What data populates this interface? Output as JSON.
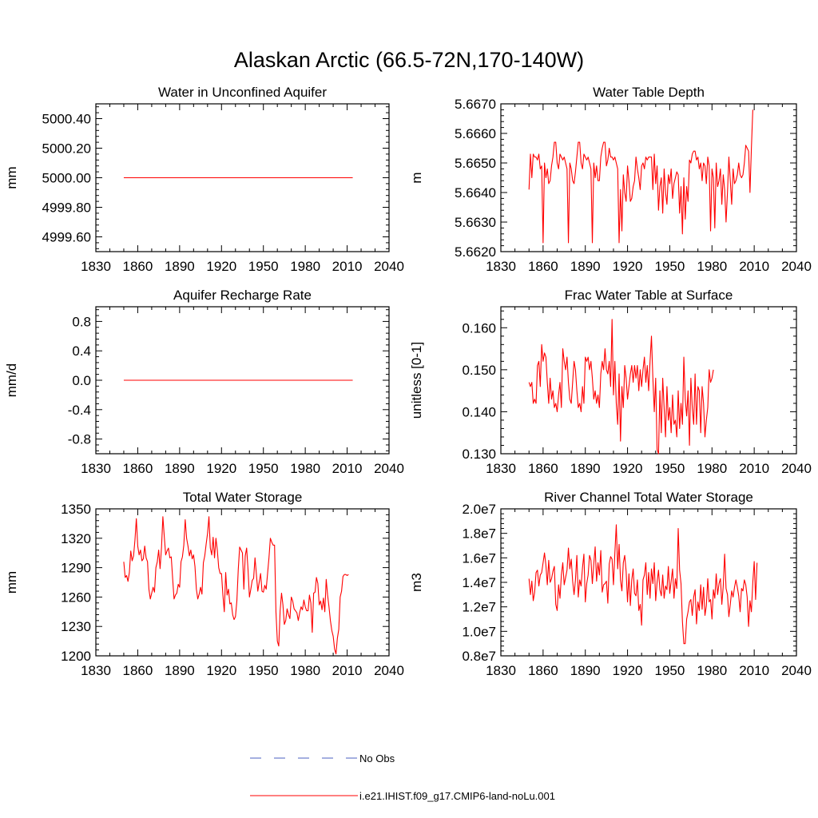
{
  "figure": {
    "title": "Alaskan Arctic (66.5-72N,170-140W)"
  },
  "legend": {
    "entries": [
      {
        "label": "No Obs",
        "color": "#4b5fc0",
        "dashed": true
      },
      {
        "label": "i.e21.IHIST.f09_g17.CMIP6-land-noLu.001",
        "color": "#ff0000",
        "dashed": false
      }
    ]
  },
  "chart_data": [
    {
      "type": "line",
      "title": "Water in Unconfined Aquifer",
      "ylabel": "mm",
      "xlim": [
        1830,
        2040
      ],
      "ylim": [
        4999.5,
        5000.5
      ],
      "xticks": [
        "1830",
        "1860",
        "1890",
        "1920",
        "1950",
        "1980",
        "2010",
        "2040"
      ],
      "yticks": [
        "4999.60",
        "4999.80",
        "5000.00",
        "5000.20",
        "5000.40"
      ],
      "ytick_values": [
        4999.6,
        4999.8,
        5000.0,
        5000.2,
        5000.4
      ],
      "series": [
        {
          "name": "i.e21.IHIST.f09_g17.CMIP6-land-noLu.001",
          "color": "#ff0000",
          "x": [
            1850,
            2014
          ],
          "y": [
            5000.0,
            5000.0
          ]
        }
      ]
    },
    {
      "type": "line",
      "title": "Water Table Depth",
      "ylabel": "m",
      "xlim": [
        1830,
        2040
      ],
      "ylim": [
        5.662,
        5.667
      ],
      "xticks": [
        "1830",
        "1860",
        "1890",
        "1920",
        "1950",
        "1980",
        "2010",
        "2040"
      ],
      "yticks": [
        "5.6620",
        "5.6630",
        "5.6640",
        "5.6650",
        "5.6660",
        "5.6670"
      ],
      "ytick_values": [
        5.662,
        5.663,
        5.664,
        5.665,
        5.666,
        5.667
      ],
      "series": [
        {
          "name": "i.e21.IHIST.f09_g17.CMIP6-land-noLu.001",
          "color": "#ff0000",
          "x_start": 1850,
          "x_step": 1,
          "y": [
            5.6641,
            5.6653,
            5.6645,
            5.6653,
            5.6652,
            5.6652,
            5.6651,
            5.6653,
            5.6648,
            5.6649,
            5.6623,
            5.665,
            5.6645,
            5.6648,
            5.6643,
            5.6644,
            5.6649,
            5.6652,
            5.6657,
            5.6657,
            5.665,
            5.6648,
            5.6653,
            5.6652,
            5.6651,
            5.6652,
            5.665,
            5.6648,
            5.6623,
            5.665,
            5.6648,
            5.6644,
            5.6643,
            5.6647,
            5.6652,
            5.6657,
            5.6657,
            5.665,
            5.6648,
            5.6653,
            5.6652,
            5.6651,
            5.6652,
            5.665,
            5.6648,
            5.6623,
            5.665,
            5.6645,
            5.6649,
            5.6644,
            5.6644,
            5.6652,
            5.6655,
            5.6657,
            5.6657,
            5.6649,
            5.6651,
            5.6655,
            5.6652,
            5.6652,
            5.6651,
            5.6652,
            5.665,
            5.6648,
            5.6623,
            5.6641,
            5.6627,
            5.6646,
            5.664,
            5.6637,
            5.6649,
            5.6644,
            5.6637,
            5.6638,
            5.6642,
            5.6644,
            5.6652,
            5.6648,
            5.6645,
            5.6641,
            5.6649,
            5.665,
            5.6648,
            5.6652,
            5.6651,
            5.6652,
            5.6652,
            5.6652,
            5.6641,
            5.6653,
            5.6643,
            5.6649,
            5.6634,
            5.6642,
            5.6645,
            5.6633,
            5.6648,
            5.664,
            5.6636,
            5.6646,
            5.6643,
            5.6648,
            5.6638,
            5.6643,
            5.6645,
            5.6647,
            5.6646,
            5.6633,
            5.6642,
            5.6626,
            5.6645,
            5.6631,
            5.6642,
            5.6637,
            5.6651,
            5.665,
            5.6653,
            5.6654,
            5.6654,
            5.6651,
            5.6652,
            5.6648,
            5.665,
            5.6644,
            5.665,
            5.6649,
            5.6643,
            5.6652,
            5.6649,
            5.6627,
            5.6648,
            5.6645,
            5.6628,
            5.665,
            5.6642,
            5.6644,
            5.6648,
            5.6636,
            5.6646,
            5.6641,
            5.663,
            5.664,
            5.6652,
            5.6644,
            5.6636,
            5.6648,
            5.6643,
            5.6644,
            5.6646,
            5.665,
            5.6646,
            5.6645,
            5.6646,
            5.665,
            5.6656,
            5.6655,
            5.6654,
            5.664,
            5.6655,
            5.6668
          ]
        }
      ]
    },
    {
      "type": "line",
      "title": "Aquifer Recharge Rate",
      "ylabel": "mm/d",
      "xlim": [
        1830,
        2040
      ],
      "ylim": [
        -1.0,
        1.0
      ],
      "xticks": [
        "1830",
        "1860",
        "1890",
        "1920",
        "1950",
        "1980",
        "2010",
        "2040"
      ],
      "yticks": [
        "-0.8",
        "-0.4",
        "0.0",
        "0.4",
        "0.8"
      ],
      "ytick_values": [
        -0.8,
        -0.4,
        0.0,
        0.4,
        0.8
      ],
      "series": [
        {
          "name": "i.e21.IHIST.f09_g17.CMIP6-land-noLu.001",
          "color": "#ff0000",
          "x": [
            1850,
            2014
          ],
          "y": [
            0.0,
            0.0
          ]
        }
      ]
    },
    {
      "type": "line",
      "title": "Frac Water Table at Surface",
      "ylabel": "unitless [0-1]",
      "xlim": [
        1830,
        2040
      ],
      "ylim": [
        0.13,
        0.165
      ],
      "xticks": [
        "1830",
        "1860",
        "1890",
        "1920",
        "1950",
        "1980",
        "2010",
        "2040"
      ],
      "yticks": [
        "0.130",
        "0.140",
        "0.150",
        "0.160"
      ],
      "ytick_values": [
        0.13,
        0.14,
        0.15,
        0.16
      ],
      "series": [
        {
          "name": "i.e21.IHIST.f09_g17.CMIP6-land-noLu.001",
          "color": "#ff0000",
          "x_start": 1850,
          "x_step": 1,
          "y": [
            0.147,
            0.146,
            0.147,
            0.142,
            0.143,
            0.142,
            0.151,
            0.152,
            0.146,
            0.156,
            0.152,
            0.154,
            0.153,
            0.147,
            0.142,
            0.148,
            0.143,
            0.145,
            0.141,
            0.142,
            0.14,
            0.144,
            0.147,
            0.141,
            0.155,
            0.152,
            0.15,
            0.153,
            0.147,
            0.143,
            0.142,
            0.147,
            0.152,
            0.15,
            0.145,
            0.141,
            0.142,
            0.14,
            0.146,
            0.142,
            0.153,
            0.152,
            0.153,
            0.15,
            0.152,
            0.148,
            0.143,
            0.145,
            0.142,
            0.144,
            0.141,
            0.149,
            0.152,
            0.15,
            0.155,
            0.15,
            0.149,
            0.152,
            0.146,
            0.162,
            0.144,
            0.152,
            0.142,
            0.137,
            0.149,
            0.133,
            0.146,
            0.141,
            0.151,
            0.148,
            0.143,
            0.146,
            0.149,
            0.151,
            0.147,
            0.151,
            0.148,
            0.151,
            0.145,
            0.15,
            0.146,
            0.15,
            0.153,
            0.147,
            0.151,
            0.145,
            0.152,
            0.158,
            0.148,
            0.14,
            0.148,
            0.131,
            0.13,
            0.145,
            0.135,
            0.148,
            0.141,
            0.134,
            0.146,
            0.138,
            0.141,
            0.135,
            0.144,
            0.137,
            0.138,
            0.134,
            0.145,
            0.136,
            0.142,
            0.137,
            0.153,
            0.143,
            0.139,
            0.145,
            0.132,
            0.148,
            0.141,
            0.137,
            0.149,
            0.137,
            0.146,
            0.145,
            0.135,
            0.146,
            0.142,
            0.134,
            0.138,
            0.141,
            0.15,
            0.147,
            0.148,
            0.15
          ]
        }
      ]
    },
    {
      "type": "line",
      "title": "Total Water Storage",
      "ylabel": "mm",
      "xlim": [
        1830,
        2040
      ],
      "ylim": [
        1200,
        1350
      ],
      "xticks": [
        "1830",
        "1860",
        "1890",
        "1920",
        "1950",
        "1980",
        "2010",
        "2040"
      ],
      "yticks": [
        "1200",
        "1230",
        "1260",
        "1290",
        "1320",
        "1350"
      ],
      "ytick_values": [
        1200,
        1230,
        1260,
        1290,
        1320,
        1350
      ],
      "series": [
        {
          "name": "i.e21.IHIST.f09_g17.CMIP6-land-noLu.001",
          "color": "#ff0000",
          "x_start": 1850,
          "x_step": 1,
          "y": [
            1296,
            1280,
            1282,
            1276,
            1285,
            1307,
            1297,
            1302,
            1318,
            1340,
            1312,
            1303,
            1308,
            1297,
            1299,
            1312,
            1300,
            1296,
            1268,
            1258,
            1264,
            1270,
            1265,
            1290,
            1296,
            1308,
            1289,
            1310,
            1342,
            1322,
            1303,
            1307,
            1310,
            1300,
            1301,
            1279,
            1258,
            1262,
            1264,
            1273,
            1270,
            1296,
            1301,
            1313,
            1339,
            1320,
            1312,
            1302,
            1308,
            1299,
            1303,
            1291,
            1268,
            1258,
            1263,
            1270,
            1263,
            1295,
            1302,
            1314,
            1325,
            1342,
            1310,
            1303,
            1321,
            1300,
            1320,
            1308,
            1290,
            1284,
            1284,
            1262,
            1245,
            1285,
            1262,
            1268,
            1253,
            1254,
            1242,
            1237,
            1240,
            1256,
            1288,
            1311,
            1308,
            1305,
            1268,
            1302,
            1310,
            1288,
            1260,
            1268,
            1277,
            1279,
            1300,
            1283,
            1266,
            1275,
            1284,
            1266,
            1265,
            1272,
            1268,
            1284,
            1300,
            1320,
            1316,
            1313,
            1313,
            1245,
            1215,
            1210,
            1246,
            1264,
            1252,
            1232,
            1236,
            1248,
            1242,
            1238,
            1260,
            1256,
            1248,
            1246,
            1244,
            1236,
            1244,
            1250,
            1247,
            1257,
            1250,
            1246,
            1246,
            1262,
            1254,
            1224,
            1264,
            1265,
            1280,
            1274,
            1252,
            1256,
            1247,
            1259,
            1245,
            1278,
            1262,
            1250,
            1236,
            1226,
            1220,
            1207,
            1202,
            1218,
            1227,
            1260,
            1266,
            1281,
            1283,
            1283,
            1282,
            1283
          ]
        }
      ]
    },
    {
      "type": "line",
      "title": "River Channel Total Water Storage",
      "ylabel": "m3",
      "xlim": [
        1830,
        2040
      ],
      "ylim": [
        8000000,
        20000000
      ],
      "xticks": [
        "1830",
        "1860",
        "1890",
        "1920",
        "1950",
        "1980",
        "2010",
        "2040"
      ],
      "yticks": [
        "0.8e7",
        "1.0e7",
        "1.2e7",
        "1.4e7",
        "1.6e7",
        "1.8e7",
        "2.0e7"
      ],
      "ytick_values": [
        8000000,
        10000000,
        12000000,
        14000000,
        16000000,
        18000000,
        20000000
      ],
      "series": [
        {
          "name": "i.e21.IHIST.f09_g17.CMIP6-land-noLu.001",
          "color": "#ff0000",
          "x_start": 1850,
          "x_step": 1,
          "y": [
            14300000,
            13000000,
            14100000,
            12500000,
            13200000,
            14800000,
            15000000,
            13700000,
            14600000,
            14800000,
            15600000,
            16400000,
            15400000,
            13800000,
            15800000,
            14000000,
            14300000,
            14900000,
            15300000,
            12200000,
            11700000,
            13800000,
            12700000,
            14600000,
            15600000,
            13800000,
            14400000,
            15000000,
            16800000,
            15100000,
            15900000,
            14100000,
            13000000,
            14200000,
            16200000,
            12800000,
            14200000,
            13700000,
            15200000,
            16300000,
            12400000,
            13900000,
            14600000,
            16200000,
            15800000,
            13900000,
            15500000,
            16900000,
            14100000,
            15600000,
            14600000,
            16600000,
            13200000,
            13800000,
            13900000,
            14100000,
            12300000,
            15500000,
            16100000,
            15900000,
            13800000,
            16400000,
            18700000,
            15100000,
            17100000,
            14200000,
            13300000,
            15600000,
            16200000,
            14900000,
            12400000,
            14700000,
            12100000,
            14200000,
            15100000,
            13100000,
            12900000,
            14200000,
            11700000,
            12200000,
            10500000,
            14200000,
            14600000,
            15600000,
            13000000,
            14800000,
            12700000,
            15100000,
            13900000,
            15600000,
            12500000,
            14000000,
            15000000,
            13400000,
            12900000,
            14600000,
            12700000,
            13700000,
            13400000,
            15300000,
            13100000,
            14100000,
            15100000,
            12700000,
            14300000,
            13500000,
            18400000,
            15000000,
            13900000,
            10800000,
            9000000,
            9000000,
            11000000,
            11600000,
            12400000,
            12600000,
            11300000,
            12800000,
            13400000,
            10600000,
            12400000,
            11700000,
            13800000,
            11800000,
            13600000,
            11300000,
            12100000,
            14300000,
            12400000,
            12600000,
            11000000,
            13400000,
            12700000,
            14700000,
            13000000,
            13900000,
            14300000,
            12200000,
            13700000,
            16300000,
            13500000,
            13000000,
            11200000,
            12200000,
            13300000,
            12800000,
            13600000,
            14200000,
            13600000,
            12900000,
            11600000,
            13500000,
            13300000,
            14200000,
            13800000,
            12800000,
            10400000,
            12500000,
            11600000,
            14000000,
            15700000,
            12600000,
            15600000
          ]
        }
      ]
    }
  ]
}
